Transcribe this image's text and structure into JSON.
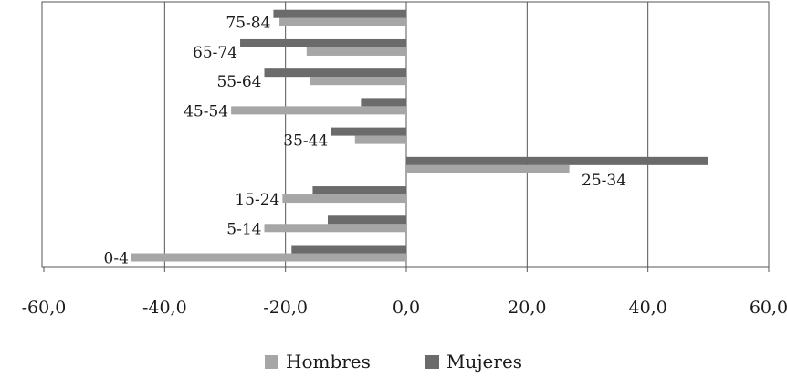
{
  "chart_data": {
    "type": "bar",
    "orientation": "horizontal",
    "categories": [
      "0-4",
      "5-14",
      "15-24",
      "25-34",
      "35-44",
      "45-54",
      "55-64",
      "65-74",
      "75-84"
    ],
    "series": [
      {
        "name": "Hombres",
        "color": "#a6a6a6",
        "values": [
          -45.5,
          -23.5,
          -20.5,
          27.0,
          -8.5,
          -29.0,
          -16.0,
          -16.5,
          -21.0
        ]
      },
      {
        "name": "Mujeres",
        "color": "#6b6b6b",
        "values": [
          -19.0,
          -13.0,
          -15.5,
          50.0,
          -12.5,
          -7.5,
          -23.5,
          -27.5,
          -22.0
        ]
      }
    ],
    "xlim": [
      -60,
      60
    ],
    "x_ticks": [
      "-60,0",
      "-40,0",
      "-20,0",
      "0,0",
      "20,0",
      "40,0",
      "60,0"
    ],
    "x_tick_values": [
      -60,
      -40,
      -20,
      0,
      20,
      40,
      60
    ],
    "grid": "vertical",
    "legend": "bottom",
    "title": "",
    "xlabel": "",
    "ylabel": ""
  }
}
